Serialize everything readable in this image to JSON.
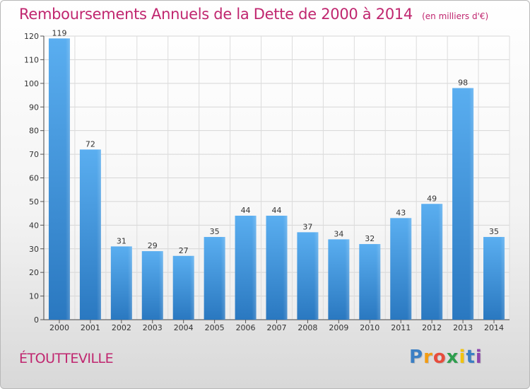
{
  "chart_data": {
    "type": "bar",
    "title": "Remboursements Annuels de la Dette de 2000 à 2014",
    "subtitle": "(en milliers d'€)",
    "categories": [
      "2000",
      "2001",
      "2002",
      "2003",
      "2004",
      "2005",
      "2006",
      "2007",
      "2008",
      "2009",
      "2010",
      "2011",
      "2012",
      "2013",
      "2014"
    ],
    "values": [
      119,
      72,
      31,
      29,
      27,
      35,
      44,
      44,
      37,
      34,
      32,
      43,
      49,
      98,
      35
    ],
    "ylim": [
      0,
      120
    ],
    "yticks": [
      0,
      10,
      20,
      30,
      40,
      50,
      60,
      70,
      80,
      90,
      100,
      110,
      120
    ],
    "grid": true,
    "bar_color": "#3a8fd8",
    "title_color": "#c0266f"
  },
  "footer": {
    "commune": "ÉTOUTTEVILLE"
  },
  "brand": {
    "letters": [
      "P",
      "r",
      "o",
      "x",
      "i",
      "t",
      "i"
    ],
    "colors": [
      "#3b7fc4",
      "#f39c12",
      "#e74c3c",
      "#2e9e4e",
      "#f1c40f",
      "#3b7fc4",
      "#8e44ad"
    ]
  }
}
